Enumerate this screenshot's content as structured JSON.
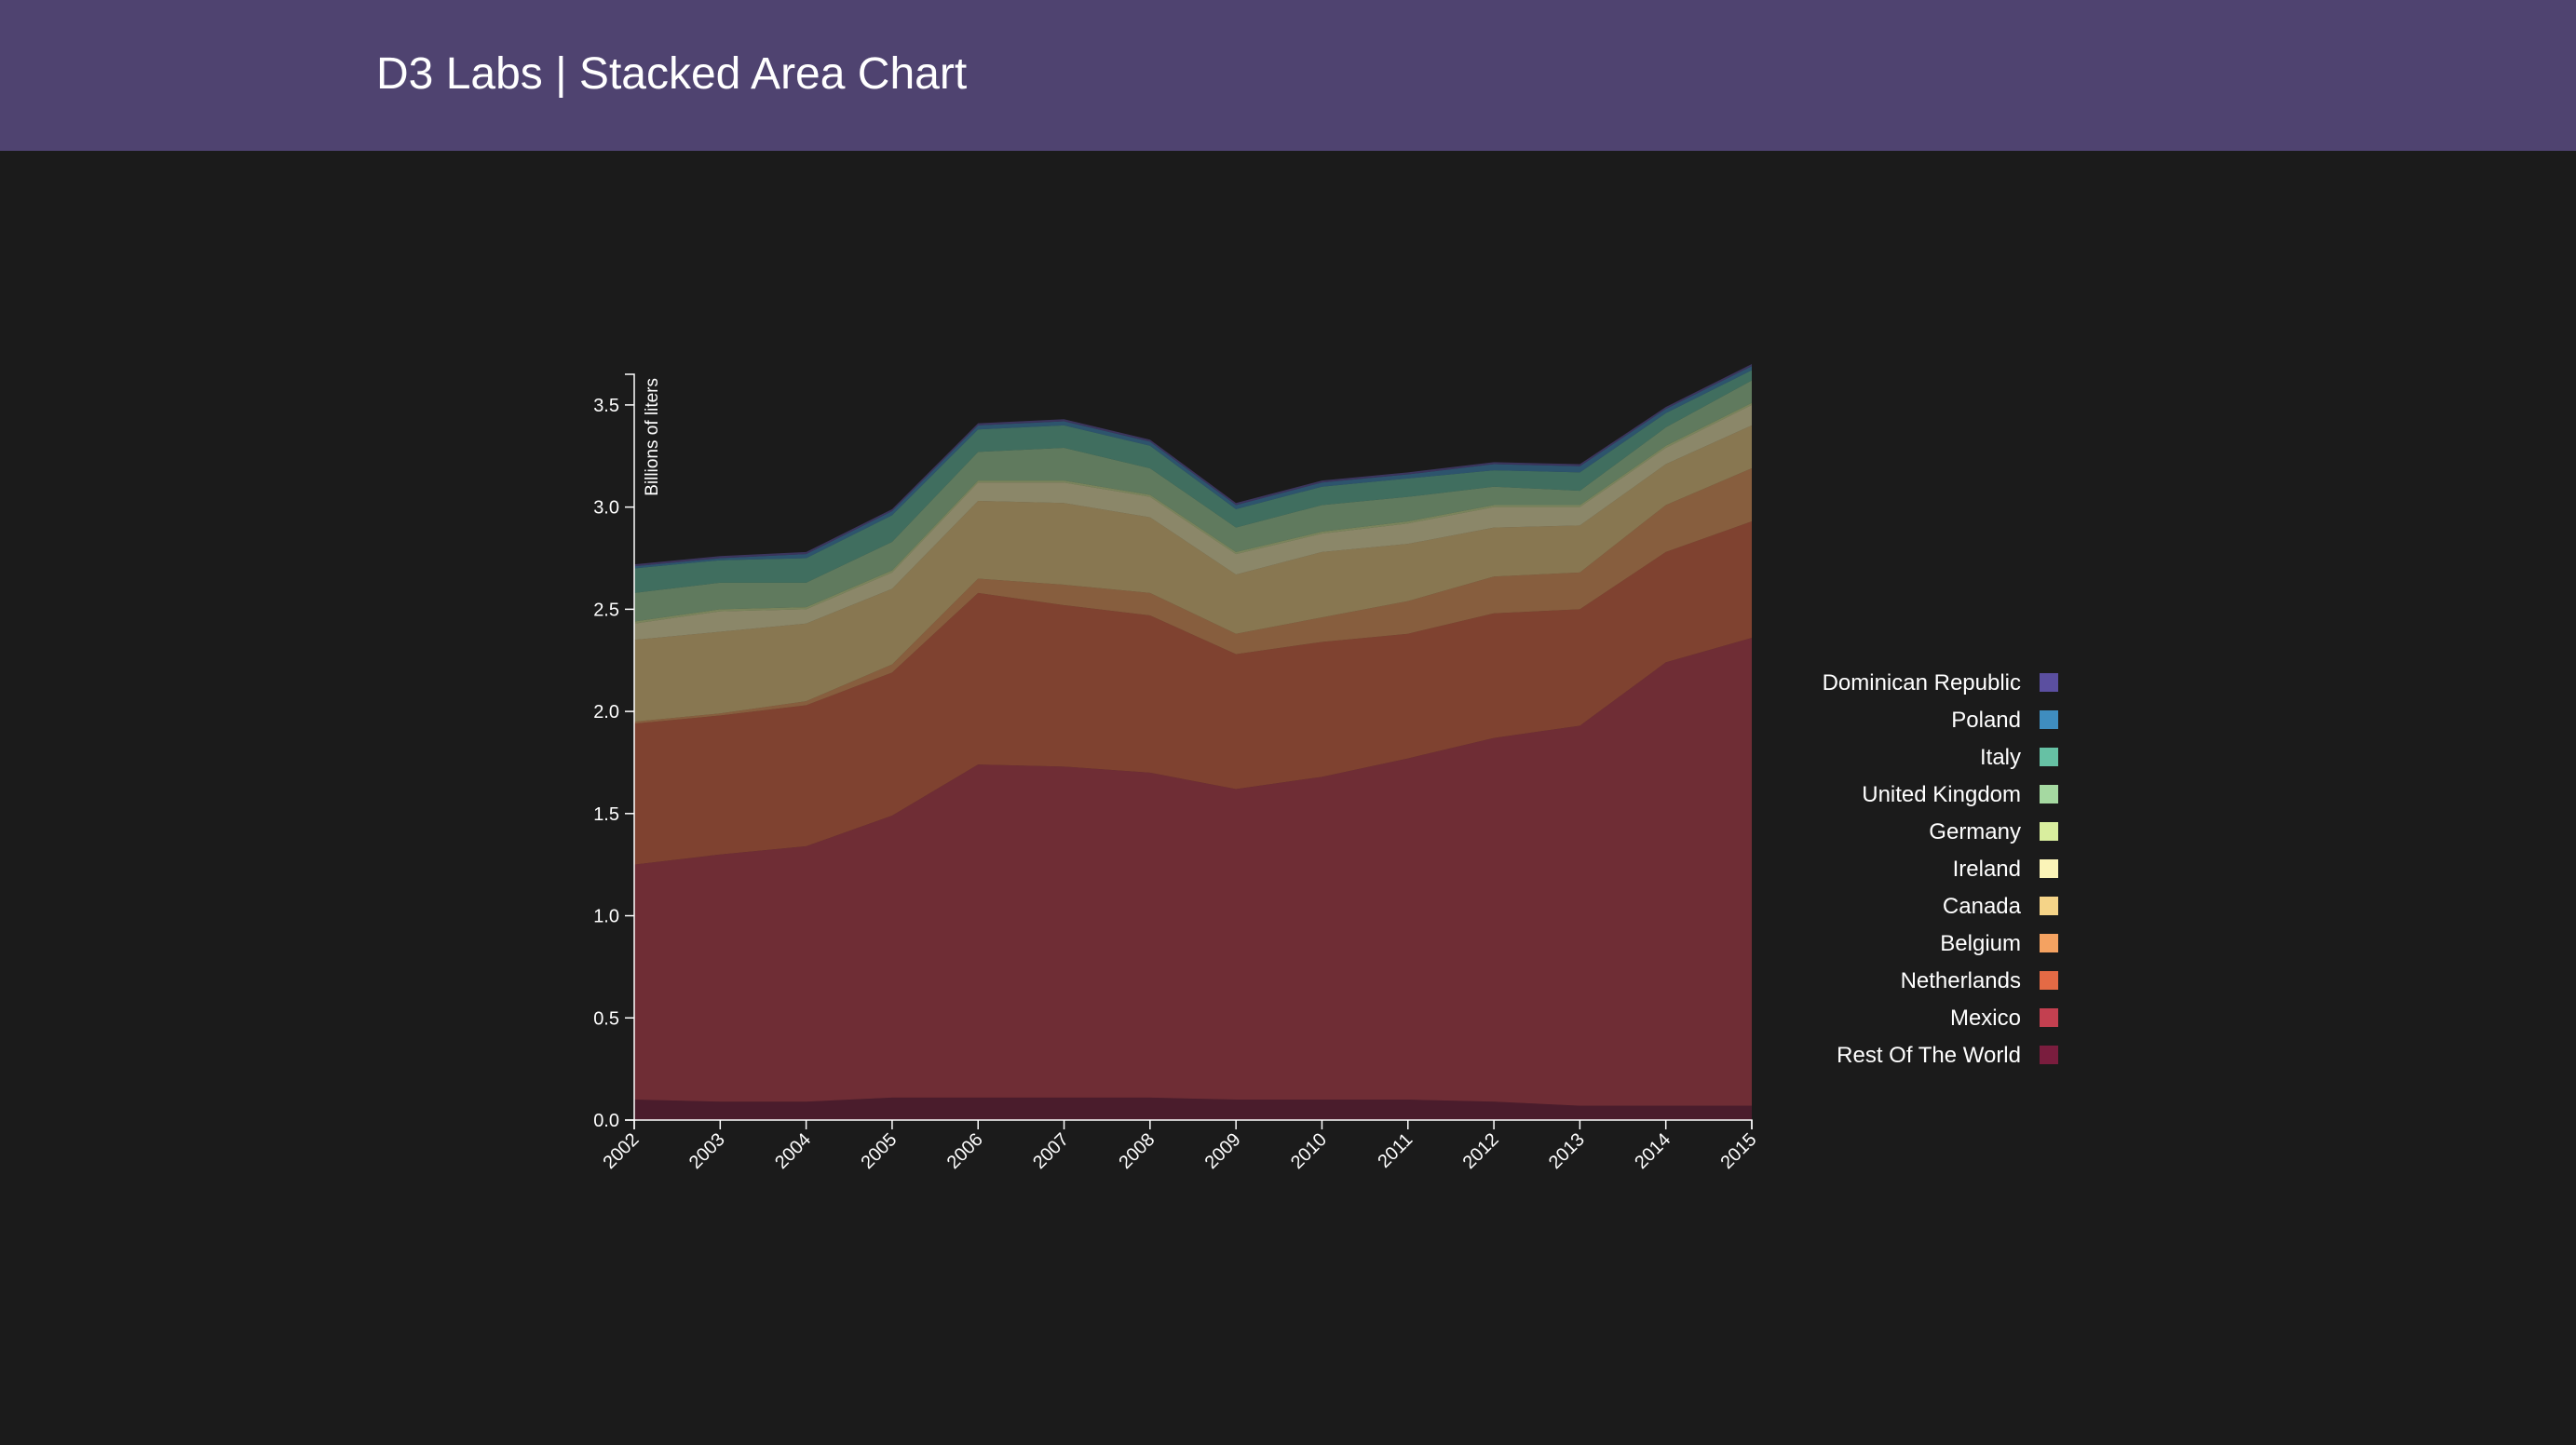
{
  "header": {
    "title": "D3 Labs | Stacked Area Chart"
  },
  "colors": {
    "header_bg": "#4f4370",
    "page_bg": "#1b1b1b",
    "axis": "#ffffff"
  },
  "chart_data": {
    "type": "area",
    "stacked": true,
    "ylabel": "Billions of liters",
    "xlabel": "",
    "ylim": [
      0,
      3.65
    ],
    "yticks": [
      "0.0",
      "0.5",
      "1.0",
      "1.5",
      "2.0",
      "2.5",
      "3.0",
      "3.5"
    ],
    "x": [
      "2002",
      "2003",
      "2004",
      "2005",
      "2006",
      "2007",
      "2008",
      "2009",
      "2010",
      "2011",
      "2012",
      "2013",
      "2014",
      "2015"
    ],
    "legend_position": "right",
    "series": [
      {
        "name": "Rest Of The World",
        "color": "#7a1d3e",
        "values": [
          0.1,
          0.09,
          0.09,
          0.11,
          0.11,
          0.11,
          0.11,
          0.1,
          0.1,
          0.1,
          0.09,
          0.07,
          0.07,
          0.07
        ]
      },
      {
        "name": "Mexico",
        "color": "#c34050",
        "values": [
          1.15,
          1.21,
          1.25,
          1.38,
          1.63,
          1.62,
          1.59,
          1.52,
          1.58,
          1.67,
          1.78,
          1.86,
          2.17,
          2.29
        ]
      },
      {
        "name": "Netherlands",
        "color": "#e46a45",
        "values": [
          0.69,
          0.68,
          0.69,
          0.7,
          0.84,
          0.79,
          0.77,
          0.66,
          0.66,
          0.61,
          0.61,
          0.57,
          0.54,
          0.57
        ]
      },
      {
        "name": "Belgium",
        "color": "#f4a261",
        "values": [
          0.01,
          0.01,
          0.02,
          0.04,
          0.07,
          0.1,
          0.11,
          0.1,
          0.12,
          0.16,
          0.18,
          0.18,
          0.23,
          0.26
        ]
      },
      {
        "name": "Canada",
        "color": "#f5d488",
        "values": [
          0.4,
          0.4,
          0.38,
          0.37,
          0.38,
          0.4,
          0.37,
          0.29,
          0.32,
          0.28,
          0.24,
          0.23,
          0.2,
          0.21
        ]
      },
      {
        "name": "Ireland",
        "color": "#fbf4b8",
        "values": [
          0.08,
          0.1,
          0.07,
          0.08,
          0.09,
          0.1,
          0.1,
          0.1,
          0.09,
          0.1,
          0.1,
          0.09,
          0.08,
          0.1
        ]
      },
      {
        "name": "Germany",
        "color": "#d9ee9e",
        "values": [
          0.01,
          0.01,
          0.01,
          0.01,
          0.01,
          0.01,
          0.01,
          0.01,
          0.01,
          0.01,
          0.01,
          0.01,
          0.01,
          0.01
        ]
      },
      {
        "name": "United Kingdom",
        "color": "#a5d9a1",
        "values": [
          0.14,
          0.13,
          0.12,
          0.14,
          0.14,
          0.16,
          0.13,
          0.12,
          0.13,
          0.12,
          0.09,
          0.07,
          0.09,
          0.11
        ]
      },
      {
        "name": "Italy",
        "color": "#66c1a4",
        "values": [
          0.12,
          0.11,
          0.12,
          0.13,
          0.11,
          0.11,
          0.11,
          0.09,
          0.09,
          0.09,
          0.08,
          0.09,
          0.07,
          0.05
        ]
      },
      {
        "name": "Poland",
        "color": "#3f8dbf",
        "values": [
          0.01,
          0.01,
          0.02,
          0.02,
          0.02,
          0.02,
          0.02,
          0.02,
          0.02,
          0.02,
          0.03,
          0.03,
          0.02,
          0.02
        ]
      },
      {
        "name": "Dominican Republic",
        "color": "#5b4fa0",
        "values": [
          0.01,
          0.01,
          0.01,
          0.01,
          0.01,
          0.01,
          0.01,
          0.01,
          0.01,
          0.01,
          0.01,
          0.01,
          0.01,
          0.01
        ]
      }
    ]
  }
}
